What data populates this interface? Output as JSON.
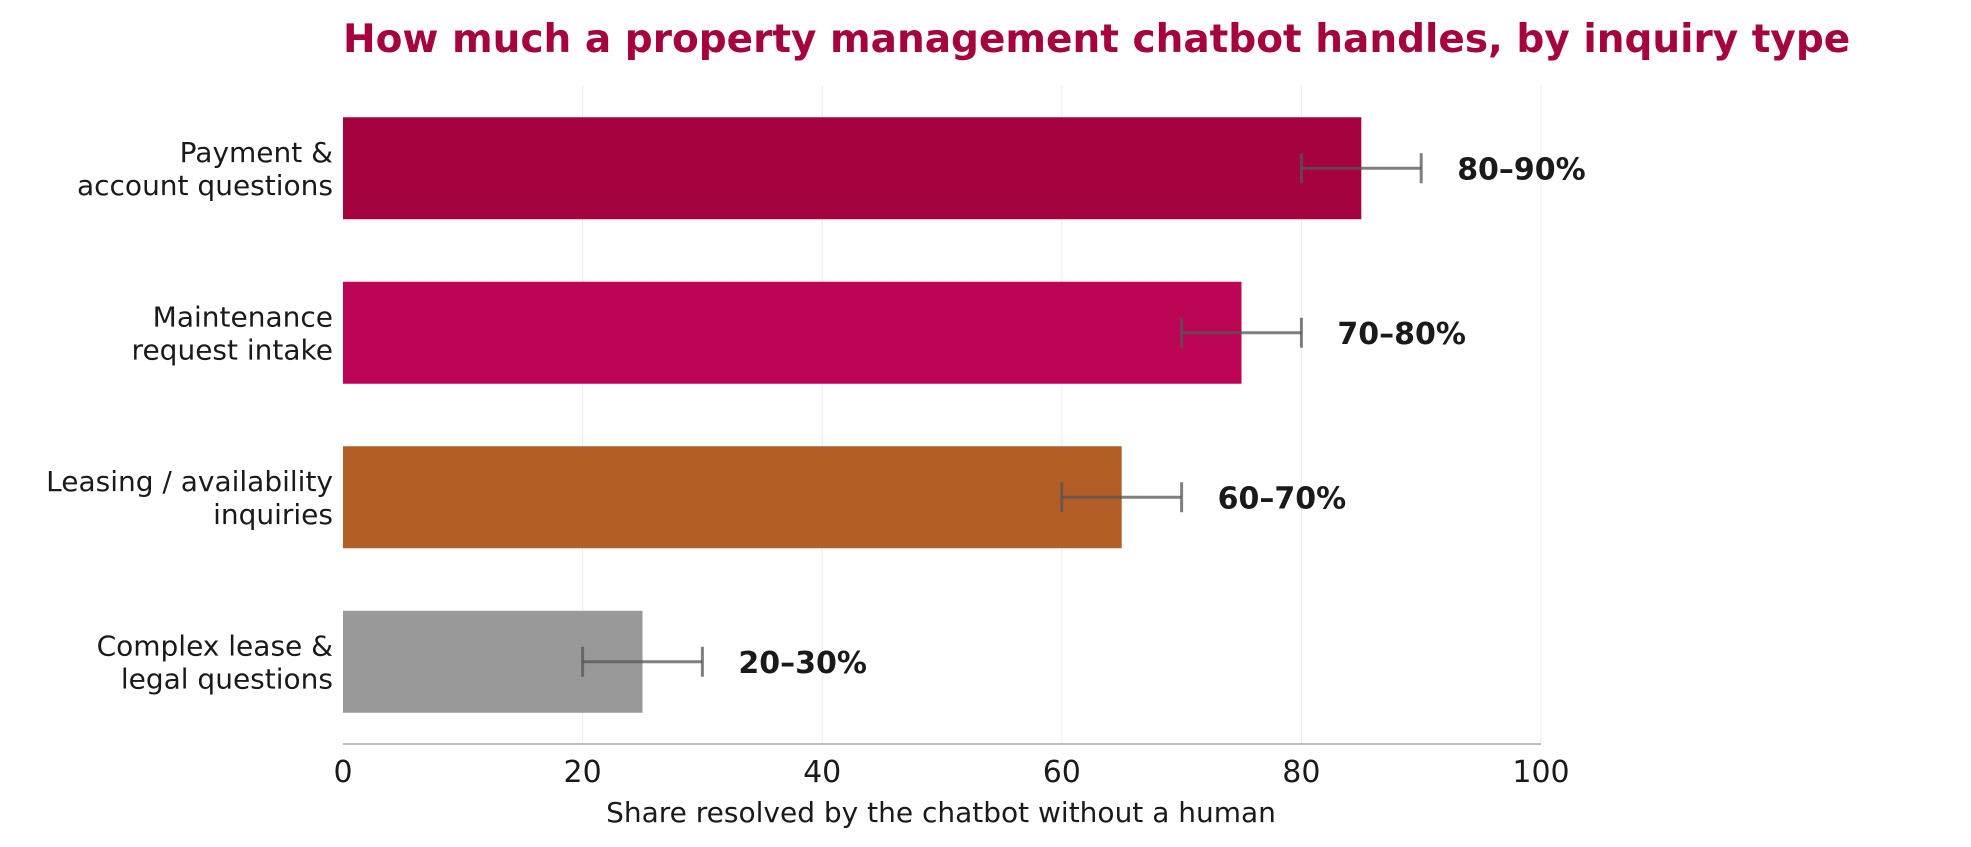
{
  "chart_data": {
    "type": "bar",
    "orientation": "horizontal",
    "title": "How much a property management chatbot handles, by inquiry type",
    "xlabel": "Share resolved by the chatbot without a human",
    "ylabel": "",
    "xlim": [
      0,
      100
    ],
    "xticks": [
      "0",
      "20",
      "40",
      "60",
      "80",
      "100"
    ],
    "grid": "vertical",
    "categories": [
      [
        "Payment &",
        "account questions"
      ],
      [
        "Maintenance",
        "request intake"
      ],
      [
        "Leasing / availability",
        "inquiries"
      ],
      [
        "Complex lease &",
        "legal questions"
      ]
    ],
    "values": [
      85,
      75,
      65,
      25
    ],
    "range_low": [
      80,
      70,
      60,
      20
    ],
    "range_high": [
      90,
      80,
      70,
      30
    ],
    "value_labels": [
      "80–90%",
      "70–80%",
      "60–70%",
      "20–30%"
    ],
    "colors": [
      "#a5033f",
      "#bd0556",
      "#b45e27",
      "#999999"
    ],
    "title_color": "#a5033f",
    "errorbar_color": "#555555"
  }
}
